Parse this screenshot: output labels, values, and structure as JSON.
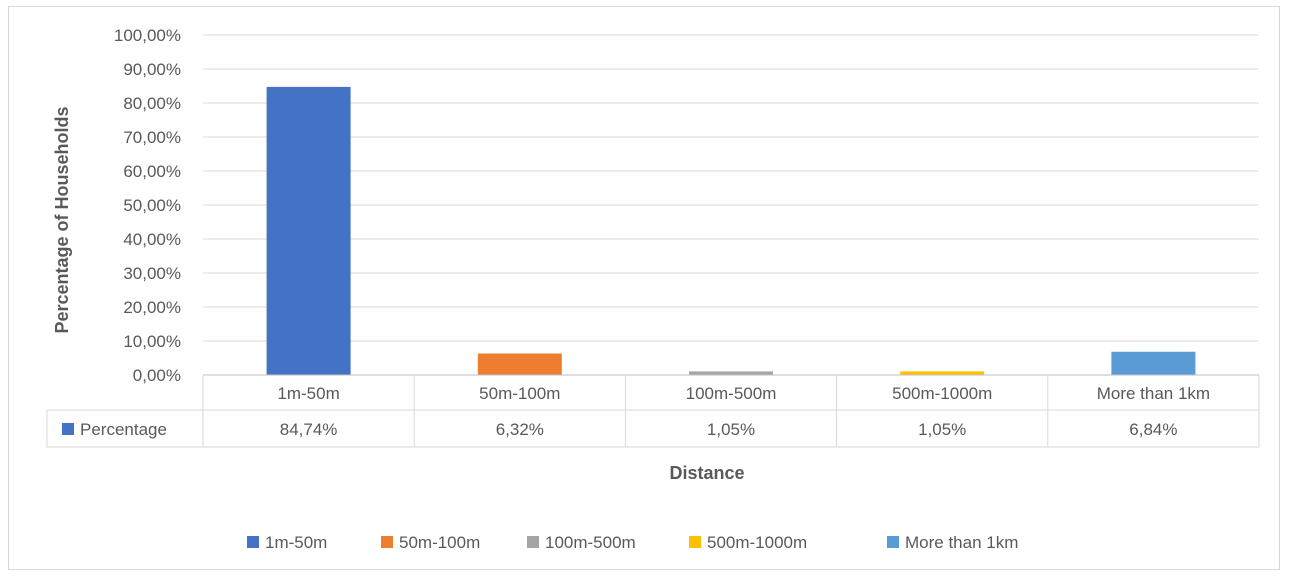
{
  "chart_data": {
    "type": "bar",
    "title": "",
    "xlabel": "Distance",
    "ylabel": "Percentage of Households",
    "ylim": [
      0,
      100
    ],
    "y_tick_labels": [
      "0,00%",
      "10,00%",
      "20,00%",
      "30,00%",
      "40,00%",
      "50,00%",
      "60,00%",
      "70,00%",
      "80,00%",
      "90,00%",
      "100,00%"
    ],
    "grid": true,
    "categories": [
      "1m-50m",
      "50m-100m",
      "100m-500m",
      "500m-1000m",
      "More than 1km"
    ],
    "values": [
      84.74,
      6.32,
      1.05,
      1.05,
      6.84
    ],
    "data_table": {
      "series_label": "Percentage",
      "series_color": "#4472c4",
      "cells": [
        "84,74%",
        "6,32%",
        "1,05%",
        "1,05%",
        "6,84%"
      ]
    },
    "colors": [
      "#4472c4",
      "#ed7d31",
      "#a5a5a5",
      "#ffc000",
      "#5b9bd5"
    ],
    "legend_position": "bottom",
    "legend": [
      "1m-50m",
      "50m-100m",
      "100m-500m",
      "500m-1000m",
      "More than 1km"
    ]
  }
}
